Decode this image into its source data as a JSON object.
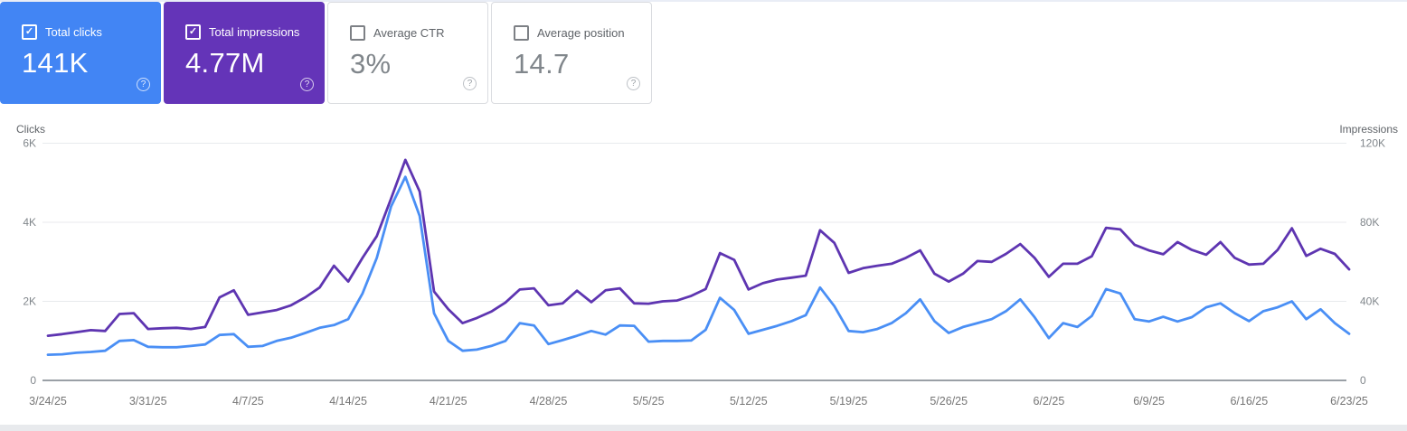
{
  "page": {
    "top_strip_color": "#e9edf6",
    "bottom_strip_color": "#e8eaed",
    "background": "#ffffff"
  },
  "icons": {
    "checkmark": "✓",
    "help": "?"
  },
  "cards": [
    {
      "id": "total-clicks",
      "label": "Total clicks",
      "value": "141K",
      "checked": true,
      "bg": "#4285f4",
      "text_color": "#ffffff"
    },
    {
      "id": "total-impressions",
      "label": "Total impressions",
      "value": "4.77M",
      "checked": true,
      "bg": "#6434b8",
      "text_color": "#ffffff"
    },
    {
      "id": "average-ctr",
      "label": "Average CTR",
      "value": "3%",
      "checked": false,
      "bg": "#ffffff",
      "text_color": "#80868b"
    },
    {
      "id": "average-position",
      "label": "Average position",
      "value": "14.7",
      "checked": false,
      "bg": "#ffffff",
      "text_color": "#80868b"
    }
  ],
  "chart_data": {
    "type": "line",
    "title": "Search performance over time",
    "granularity": "daily",
    "date_start": "3/24/25",
    "date_end": "6/23/25",
    "grid": "horizontal",
    "x_tick_labels": [
      "3/24/25",
      "3/31/25",
      "4/7/25",
      "4/14/25",
      "4/21/25",
      "4/28/25",
      "5/5/25",
      "5/12/25",
      "5/19/25",
      "5/26/25",
      "6/2/25",
      "6/9/25",
      "6/16/25",
      "6/23/25"
    ],
    "left_axis": {
      "title": "Clicks",
      "range": [
        0,
        6000
      ],
      "ticks": [
        {
          "label": "0",
          "value": 0
        },
        {
          "label": "2K",
          "value": 2000
        },
        {
          "label": "4K",
          "value": 4000
        },
        {
          "label": "6K",
          "value": 6000
        }
      ]
    },
    "right_axis": {
      "title": "Impressions",
      "range": [
        0,
        120000
      ],
      "ticks": [
        {
          "label": "0",
          "value": 0
        },
        {
          "label": "40K",
          "value": 40000
        },
        {
          "label": "80K",
          "value": 80000
        },
        {
          "label": "120K",
          "value": 120000
        }
      ]
    },
    "series": [
      {
        "name": "Total clicks",
        "axis": "left",
        "color": "#4a8ff5",
        "values": [
          650,
          660,
          700,
          720,
          750,
          1000,
          1020,
          850,
          840,
          840,
          870,
          910,
          1150,
          1170,
          850,
          870,
          1000,
          1080,
          1200,
          1330,
          1400,
          1550,
          2200,
          3100,
          4400,
          5150,
          4160,
          1700,
          1000,
          750,
          780,
          870,
          1000,
          1450,
          1390,
          920,
          1020,
          1130,
          1250,
          1160,
          1390,
          1380,
          980,
          1000,
          1000,
          1010,
          1280,
          2090,
          1780,
          1180,
          1280,
          1380,
          1500,
          1650,
          2350,
          1880,
          1250,
          1220,
          1300,
          1450,
          1700,
          2050,
          1500,
          1200,
          1350,
          1450,
          1550,
          1750,
          2050,
          1600,
          1070,
          1450,
          1350,
          1630,
          2310,
          2200,
          1550,
          1490,
          1610,
          1490,
          1600,
          1850,
          1950,
          1700,
          1500,
          1750,
          1850,
          2000,
          1550,
          1800,
          1450,
          1180
        ]
      },
      {
        "name": "Total impressions",
        "axis": "right",
        "color": "#5e35b1",
        "values": [
          22600,
          23400,
          24400,
          25400,
          25000,
          33600,
          34000,
          26000,
          26400,
          26600,
          26000,
          27000,
          42000,
          45600,
          33200,
          34400,
          35600,
          38000,
          42000,
          47000,
          58000,
          50000,
          62000,
          73000,
          92000,
          111600,
          95600,
          45000,
          36000,
          29000,
          31600,
          34800,
          39400,
          46000,
          46600,
          38000,
          39000,
          45400,
          39600,
          45600,
          46600,
          39000,
          38800,
          40000,
          40400,
          42800,
          46200,
          64400,
          61000,
          46000,
          49200,
          51000,
          52000,
          53000,
          76000,
          69600,
          54400,
          56800,
          58000,
          59000,
          62000,
          65800,
          54000,
          50000,
          54000,
          60400,
          60000,
          64000,
          69000,
          62000,
          52400,
          59000,
          59000,
          62800,
          77200,
          76400,
          68600,
          65800,
          63800,
          70000,
          66000,
          63600,
          70000,
          62000,
          58600,
          59000,
          66000,
          77000,
          63000,
          66600,
          64000,
          56200
        ]
      }
    ]
  }
}
